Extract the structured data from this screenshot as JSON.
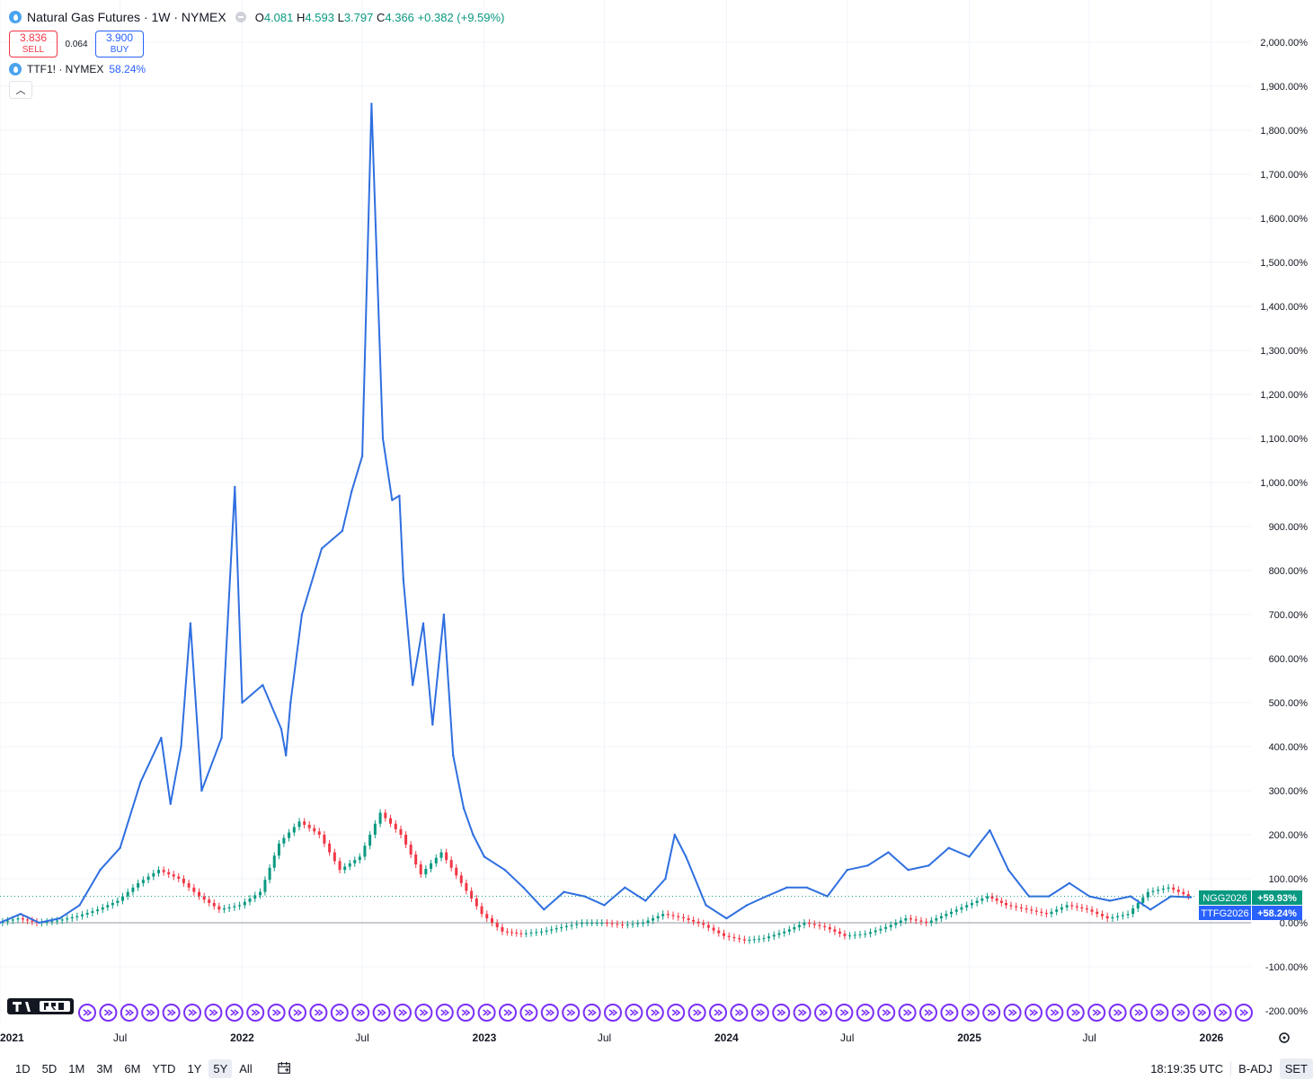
{
  "legend": {
    "title": "Natural Gas Futures · 1W · NYMEX",
    "open_key": "O",
    "open": "4.081",
    "high_key": "H",
    "high": "4.593",
    "low_key": "L",
    "low": "3.797",
    "close_key": "C",
    "close": "4.366",
    "change": "+0.382 (+9.59%)"
  },
  "trade": {
    "sell_price": "3.836",
    "sell_label": "SELL",
    "spread": "0.064",
    "buy_price": "3.900",
    "buy_label": "BUY"
  },
  "compare": {
    "symbol": "TTF1! · NYMEX",
    "pct": "58.24%"
  },
  "colors": {
    "ttf_line": "#2f6fe0",
    "up": "#089981",
    "down": "#f23645",
    "grid": "#f0f3fa"
  },
  "chart_data": {
    "type": "line",
    "title": "Natural Gas Futures · 1W · NYMEX",
    "xlabel": "",
    "ylabel": "",
    "percent_scale": true,
    "ylim": [
      -200,
      2000
    ],
    "x_range": [
      "2021-01-01",
      "2026-01-01"
    ],
    "y_ticks": [
      "2,000.00%",
      "1,900.00%",
      "1,800.00%",
      "1,700.00%",
      "1,600.00%",
      "1,500.00%",
      "1,400.00%",
      "1,300.00%",
      "1,200.00%",
      "1,100.00%",
      "1,000.00%",
      "900.00%",
      "800.00%",
      "700.00%",
      "600.00%",
      "500.00%",
      "400.00%",
      "300.00%",
      "200.00%",
      "100.00%",
      "0.00%",
      "-100.00%",
      "-200.00%"
    ],
    "x_ticks": [
      {
        "label": "2021",
        "date": "2021-01-01"
      },
      {
        "label": "Jul",
        "date": "2021-07-01"
      },
      {
        "label": "2022",
        "date": "2022-01-01"
      },
      {
        "label": "Jul",
        "date": "2022-07-01"
      },
      {
        "label": "2023",
        "date": "2023-01-01"
      },
      {
        "label": "Jul",
        "date": "2023-07-01"
      },
      {
        "label": "2024",
        "date": "2024-01-01"
      },
      {
        "label": "Jul",
        "date": "2024-07-01"
      },
      {
        "label": "2025",
        "date": "2025-01-01"
      },
      {
        "label": "Jul",
        "date": "2025-07-01"
      },
      {
        "label": "2026",
        "date": "2026-01-01"
      }
    ],
    "series": [
      {
        "name": "TTF1! · NYMEX",
        "style": "line",
        "x": [
          "2021-01-01",
          "2021-02-01",
          "2021-03-01",
          "2021-04-01",
          "2021-05-01",
          "2021-06-01",
          "2021-07-01",
          "2021-08-01",
          "2021-09-01",
          "2021-09-15",
          "2021-10-01",
          "2021-10-15",
          "2021-11-01",
          "2021-12-01",
          "2021-12-21",
          "2022-01-01",
          "2022-02-01",
          "2022-03-01",
          "2022-03-08",
          "2022-03-15",
          "2022-04-01",
          "2022-05-01",
          "2022-06-01",
          "2022-06-15",
          "2022-07-01",
          "2022-07-15",
          "2022-08-01",
          "2022-08-15",
          "2022-08-26",
          "2022-09-01",
          "2022-09-15",
          "2022-10-01",
          "2022-10-15",
          "2022-11-01",
          "2022-11-15",
          "2022-12-01",
          "2022-12-15",
          "2023-01-01",
          "2023-02-01",
          "2023-03-01",
          "2023-04-01",
          "2023-05-01",
          "2023-06-01",
          "2023-07-01",
          "2023-08-01",
          "2023-09-01",
          "2023-10-01",
          "2023-10-15",
          "2023-11-01",
          "2023-12-01",
          "2024-01-01",
          "2024-02-01",
          "2024-03-01",
          "2024-04-01",
          "2024-05-01",
          "2024-06-01",
          "2024-07-01",
          "2024-08-01",
          "2024-09-01",
          "2024-10-01",
          "2024-11-01",
          "2024-12-01",
          "2025-01-01",
          "2025-02-01",
          "2025-03-01",
          "2025-04-01",
          "2025-05-01",
          "2025-06-01",
          "2025-07-01",
          "2025-08-01",
          "2025-09-01",
          "2025-10-01",
          "2025-11-01",
          "2025-12-01"
        ],
        "values": [
          0,
          20,
          0,
          10,
          40,
          120,
          170,
          320,
          420,
          270,
          400,
          680,
          300,
          420,
          990,
          500,
          540,
          440,
          380,
          500,
          700,
          850,
          890,
          980,
          1060,
          1860,
          1100,
          960,
          970,
          780,
          540,
          680,
          450,
          700,
          380,
          260,
          200,
          150,
          120,
          80,
          30,
          70,
          60,
          40,
          80,
          50,
          100,
          200,
          150,
          40,
          10,
          40,
          60,
          80,
          80,
          60,
          120,
          130,
          160,
          120,
          130,
          170,
          150,
          210,
          120,
          60,
          60,
          90,
          60,
          50,
          60,
          30,
          60,
          58
        ]
      },
      {
        "name": "Natural Gas Futures · 1W · NYMEX",
        "style": "candles",
        "x": [
          "2021-01-01",
          "2021-02-01",
          "2021-03-01",
          "2021-04-01",
          "2021-05-01",
          "2021-06-01",
          "2021-07-01",
          "2021-08-01",
          "2021-09-01",
          "2021-10-01",
          "2021-11-01",
          "2021-12-01",
          "2022-01-01",
          "2022-02-01",
          "2022-03-01",
          "2022-04-01",
          "2022-05-01",
          "2022-06-01",
          "2022-07-01",
          "2022-08-01",
          "2022-09-01",
          "2022-10-01",
          "2022-11-01",
          "2022-12-01",
          "2023-01-01",
          "2023-02-01",
          "2023-03-01",
          "2023-04-01",
          "2023-05-01",
          "2023-06-01",
          "2023-07-01",
          "2023-08-01",
          "2023-09-01",
          "2023-10-01",
          "2023-11-01",
          "2023-12-01",
          "2024-01-01",
          "2024-02-01",
          "2024-03-01",
          "2024-04-01",
          "2024-05-01",
          "2024-06-01",
          "2024-07-01",
          "2024-08-01",
          "2024-09-01",
          "2024-10-01",
          "2024-11-01",
          "2024-12-01",
          "2025-01-01",
          "2025-02-01",
          "2025-03-01",
          "2025-04-01",
          "2025-05-01",
          "2025-06-01",
          "2025-07-01",
          "2025-08-01",
          "2025-09-01",
          "2025-10-01",
          "2025-11-01",
          "2025-12-01"
        ],
        "values": [
          0,
          10,
          0,
          5,
          15,
          30,
          50,
          90,
          120,
          100,
          60,
          30,
          40,
          70,
          180,
          230,
          200,
          120,
          150,
          250,
          200,
          110,
          160,
          90,
          20,
          -20,
          -25,
          -20,
          -10,
          0,
          0,
          -5,
          0,
          20,
          10,
          -5,
          -30,
          -40,
          -35,
          -20,
          0,
          -10,
          -30,
          -25,
          -10,
          10,
          0,
          20,
          40,
          60,
          40,
          30,
          20,
          40,
          30,
          10,
          20,
          70,
          80,
          60
        ]
      }
    ],
    "price_labels": [
      {
        "symbol": "NGG2026",
        "value": "+59.93%",
        "color": "#089981"
      },
      {
        "symbol": "TTFG2026",
        "value": "+58.24%",
        "color": "#2962ff"
      }
    ]
  },
  "toolbar": {
    "ranges": [
      "1D",
      "5D",
      "1M",
      "3M",
      "6M",
      "YTD",
      "1Y",
      "5Y",
      "All"
    ],
    "active_range": "5Y",
    "time": "18:19:35 UTC",
    "adj": "B-ADJ",
    "set": "SET"
  },
  "marker_count": 56
}
